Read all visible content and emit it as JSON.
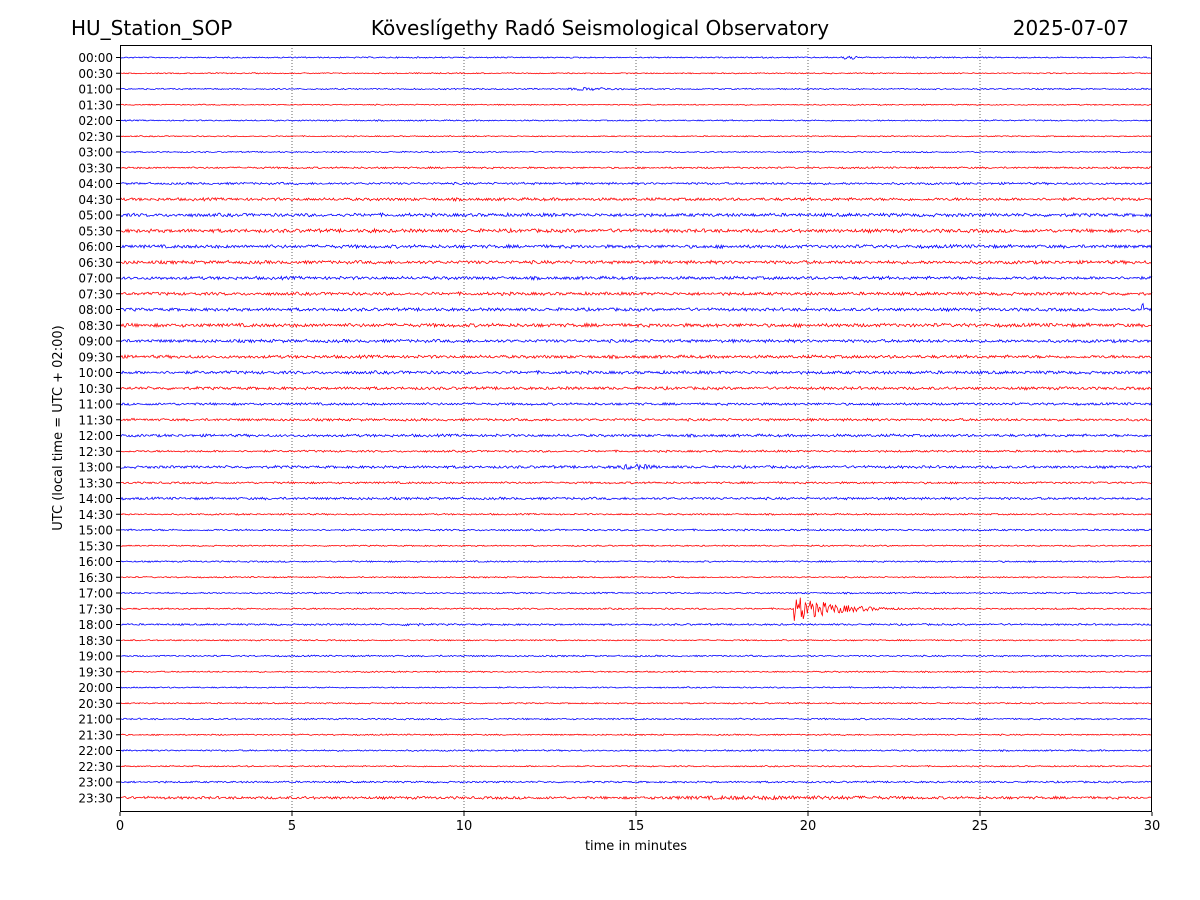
{
  "header": {
    "station": "HU_Station_SOP",
    "observatory": "Köveslígethy Radó Seismological Observatory",
    "date": "2025-07-07"
  },
  "colors": {
    "even_trace": "#0000ff",
    "odd_trace": "#ff0000",
    "grid": "#000000",
    "background": "#ffffff"
  },
  "chart_data": {
    "type": "line",
    "xlabel": "time in minutes",
    "ylabel": "UTC (local time = UTC + 02:00)",
    "xlim": [
      0,
      30
    ],
    "x_ticks": [
      0,
      5,
      10,
      15,
      20,
      25,
      30
    ],
    "grid": "vertical dotted lines at x ticks",
    "row_labels": [
      "00:00",
      "00:30",
      "01:00",
      "01:30",
      "02:00",
      "02:30",
      "03:00",
      "03:30",
      "04:00",
      "04:30",
      "05:00",
      "05:30",
      "06:00",
      "06:30",
      "07:00",
      "07:30",
      "08:00",
      "08:30",
      "09:00",
      "09:30",
      "10:00",
      "10:30",
      "11:00",
      "11:30",
      "12:00",
      "12:30",
      "13:00",
      "13:30",
      "14:00",
      "14:30",
      "15:00",
      "15:30",
      "16:00",
      "16:30",
      "17:00",
      "17:30",
      "18:00",
      "18:30",
      "19:00",
      "19:30",
      "20:00",
      "20:30",
      "21:00",
      "21:30",
      "22:00",
      "22:30",
      "23:00",
      "23:30"
    ],
    "noise_levels": [
      0.6,
      0.5,
      0.6,
      0.5,
      0.6,
      0.5,
      0.6,
      0.8,
      1.0,
      1.3,
      1.5,
      1.6,
      1.5,
      1.5,
      1.4,
      1.4,
      1.4,
      1.6,
      1.4,
      1.4,
      1.4,
      1.3,
      1.1,
      1.1,
      1.2,
      0.9,
      1.2,
      0.9,
      1.1,
      0.7,
      0.8,
      0.6,
      0.7,
      0.6,
      0.7,
      0.7,
      0.8,
      0.6,
      0.7,
      0.6,
      0.6,
      0.6,
      0.7,
      0.6,
      0.7,
      0.6,
      0.8,
      1.2
    ],
    "events": [
      {
        "row": "00:00",
        "start_min": 20.9,
        "end_min": 21.5,
        "amplitude": 2.5
      },
      {
        "row": "01:00",
        "start_min": 12.5,
        "end_min": 15.0,
        "amplitude": 1.6
      },
      {
        "row": "05:30",
        "start_min": 7.0,
        "end_min": 7.6,
        "amplitude": 2.5
      },
      {
        "row": "06:30",
        "start_min": 28.2,
        "end_min": 30.0,
        "amplitude": 1.6
      },
      {
        "row": "08:00",
        "start_min": 29.7,
        "end_min": 30.0,
        "amplitude": 12.0
      },
      {
        "row": "08:30",
        "start_min": 0.0,
        "end_min": 0.4,
        "amplitude": 2.5
      },
      {
        "row": "13:00",
        "start_min": 14.0,
        "end_min": 16.0,
        "amplitude": 2.8
      },
      {
        "row": "17:30",
        "start_min": 19.6,
        "end_min": 23.0,
        "amplitude": 14.0
      },
      {
        "row": "18:00",
        "start_min": 8.0,
        "end_min": 9.0,
        "amplitude": 1.8
      },
      {
        "row": "23:30",
        "start_min": 12.5,
        "end_min": 26.0,
        "amplitude": 2.0
      }
    ]
  }
}
